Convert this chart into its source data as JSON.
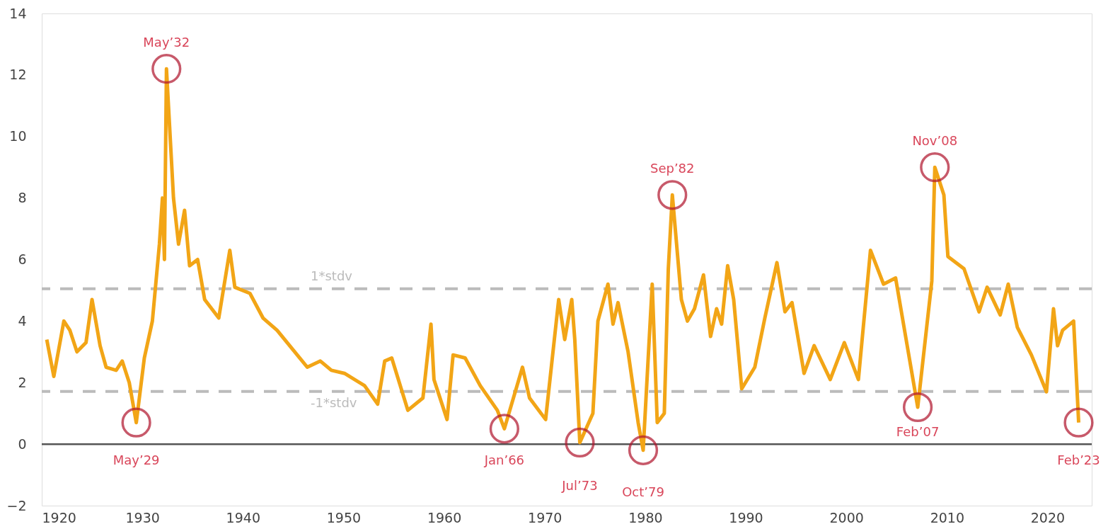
{
  "chart_data": {
    "type": "line",
    "x": [
      1920.5,
      1921.2,
      1922.2,
      1922.8,
      1923.5,
      1924.4,
      1925.0,
      1925.8,
      1926.4,
      1927.4,
      1928.0,
      1928.7,
      1929.4,
      1930.2,
      1931.0,
      1931.7,
      1932.0,
      1932.2,
      1932.4,
      1933.1,
      1933.6,
      1934.2,
      1934.7,
      1935.5,
      1936.2,
      1937.6,
      1938.7,
      1939.2,
      1940.7,
      1942.0,
      1943.4,
      1946.4,
      1947.7,
      1948.8,
      1950.1,
      1952.1,
      1953.4,
      1954.1,
      1954.8,
      1956.4,
      1957.9,
      1958.7,
      1959.0,
      1960.3,
      1960.9,
      1962.1,
      1963.6,
      1965.3,
      1966.0,
      1967.8,
      1968.5,
      1970.1,
      1971.4,
      1972.0,
      1972.7,
      1973.0,
      1973.5,
      1974.8,
      1975.3,
      1976.3,
      1976.8,
      1977.3,
      1978.3,
      1979.3,
      1979.8,
      1980.7,
      1981.2,
      1981.9,
      1982.3,
      1982.7,
      1983.6,
      1984.2,
      1984.9,
      1985.8,
      1986.5,
      1987.1,
      1987.6,
      1988.2,
      1988.8,
      1989.6,
      1990.9,
      1991.9,
      1993.1,
      1993.9,
      1994.6,
      1995.8,
      1996.8,
      1998.4,
      1999.8,
      2001.2,
      2002.4,
      2003.7,
      2004.9,
      2007.1,
      2008.5,
      2008.8,
      2009.7,
      2010.1,
      2011.7,
      2013.2,
      2014.0,
      2015.3,
      2016.1,
      2017.0,
      2018.4,
      2019.9,
      2020.6,
      2021.0,
      2021.5,
      2022.6,
      2023.1
    ],
    "series": [
      {
        "color": "#f2a516",
        "values": [
          3.4,
          2.2,
          4.0,
          3.7,
          3.0,
          3.3,
          4.7,
          3.2,
          2.5,
          2.4,
          2.7,
          2.0,
          0.7,
          2.8,
          4.0,
          6.5,
          8.0,
          6.0,
          12.2,
          8.0,
          6.5,
          7.6,
          5.8,
          6.0,
          4.7,
          4.1,
          6.3,
          5.1,
          4.9,
          4.1,
          3.7,
          2.5,
          2.7,
          2.4,
          2.3,
          1.9,
          1.3,
          2.7,
          2.8,
          1.1,
          1.5,
          3.9,
          2.1,
          0.8,
          2.9,
          2.8,
          1.9,
          1.1,
          0.5,
          2.5,
          1.5,
          0.8,
          4.7,
          3.4,
          4.7,
          3.4,
          0.05,
          1.0,
          4.0,
          5.2,
          3.9,
          4.6,
          3.0,
          0.7,
          -0.2,
          5.2,
          0.7,
          1.0,
          5.7,
          8.1,
          4.7,
          4.0,
          4.4,
          5.5,
          3.5,
          4.4,
          3.9,
          5.8,
          4.7,
          1.8,
          2.5,
          4.1,
          5.9,
          4.3,
          4.6,
          2.3,
          3.2,
          2.1,
          3.3,
          2.1,
          6.3,
          5.2,
          5.4,
          1.2,
          5.3,
          9.0,
          8.1,
          6.1,
          5.7,
          4.3,
          5.1,
          4.2,
          5.2,
          3.8,
          2.9,
          1.7,
          4.4,
          3.2,
          3.7,
          4.0,
          0.7
        ]
      }
    ],
    "xlim": [
      1920,
      2024.4
    ],
    "xticks": [
      1920,
      1930,
      1940,
      1950,
      1960,
      1970,
      1980,
      1990,
      2000,
      2010,
      2020
    ],
    "ylim": [
      -2,
      14
    ],
    "yticks": [
      -2,
      0,
      2,
      4,
      6,
      8,
      10,
      12,
      14
    ],
    "grid": false,
    "marker": "none",
    "line_style": "solid",
    "ref_lines": [
      {
        "axis": "y",
        "value": 0,
        "label": null,
        "color": "#555555",
        "line_style": "solid"
      },
      {
        "axis": "y",
        "value": 5.05,
        "label": "1*stdv",
        "color": "#bbbbbb",
        "line_style": "dashed"
      },
      {
        "axis": "y",
        "value": 1.71,
        "label": "-1*stdv",
        "color": "#bbbbbb",
        "line_style": "dashed"
      }
    ],
    "annotations": [
      {
        "text": "May’29",
        "x": 1929.4,
        "y": 0.7
      },
      {
        "text": "May’32",
        "x": 1932.4,
        "y": 12.2
      },
      {
        "text": "Jan’66",
        "x": 1966.0,
        "y": 0.5
      },
      {
        "text": "Jul’73",
        "x": 1973.5,
        "y": 0.05
      },
      {
        "text": "Oct’79",
        "x": 1979.8,
        "y": -0.2
      },
      {
        "text": "Sep’82",
        "x": 1982.7,
        "y": 8.1
      },
      {
        "text": "Feb’07",
        "x": 2007.1,
        "y": 1.2
      },
      {
        "text": "Nov’08",
        "x": 2008.8,
        "y": 9.0
      },
      {
        "text": "Feb’23",
        "x": 2023.1,
        "y": 0.7
      }
    ]
  }
}
